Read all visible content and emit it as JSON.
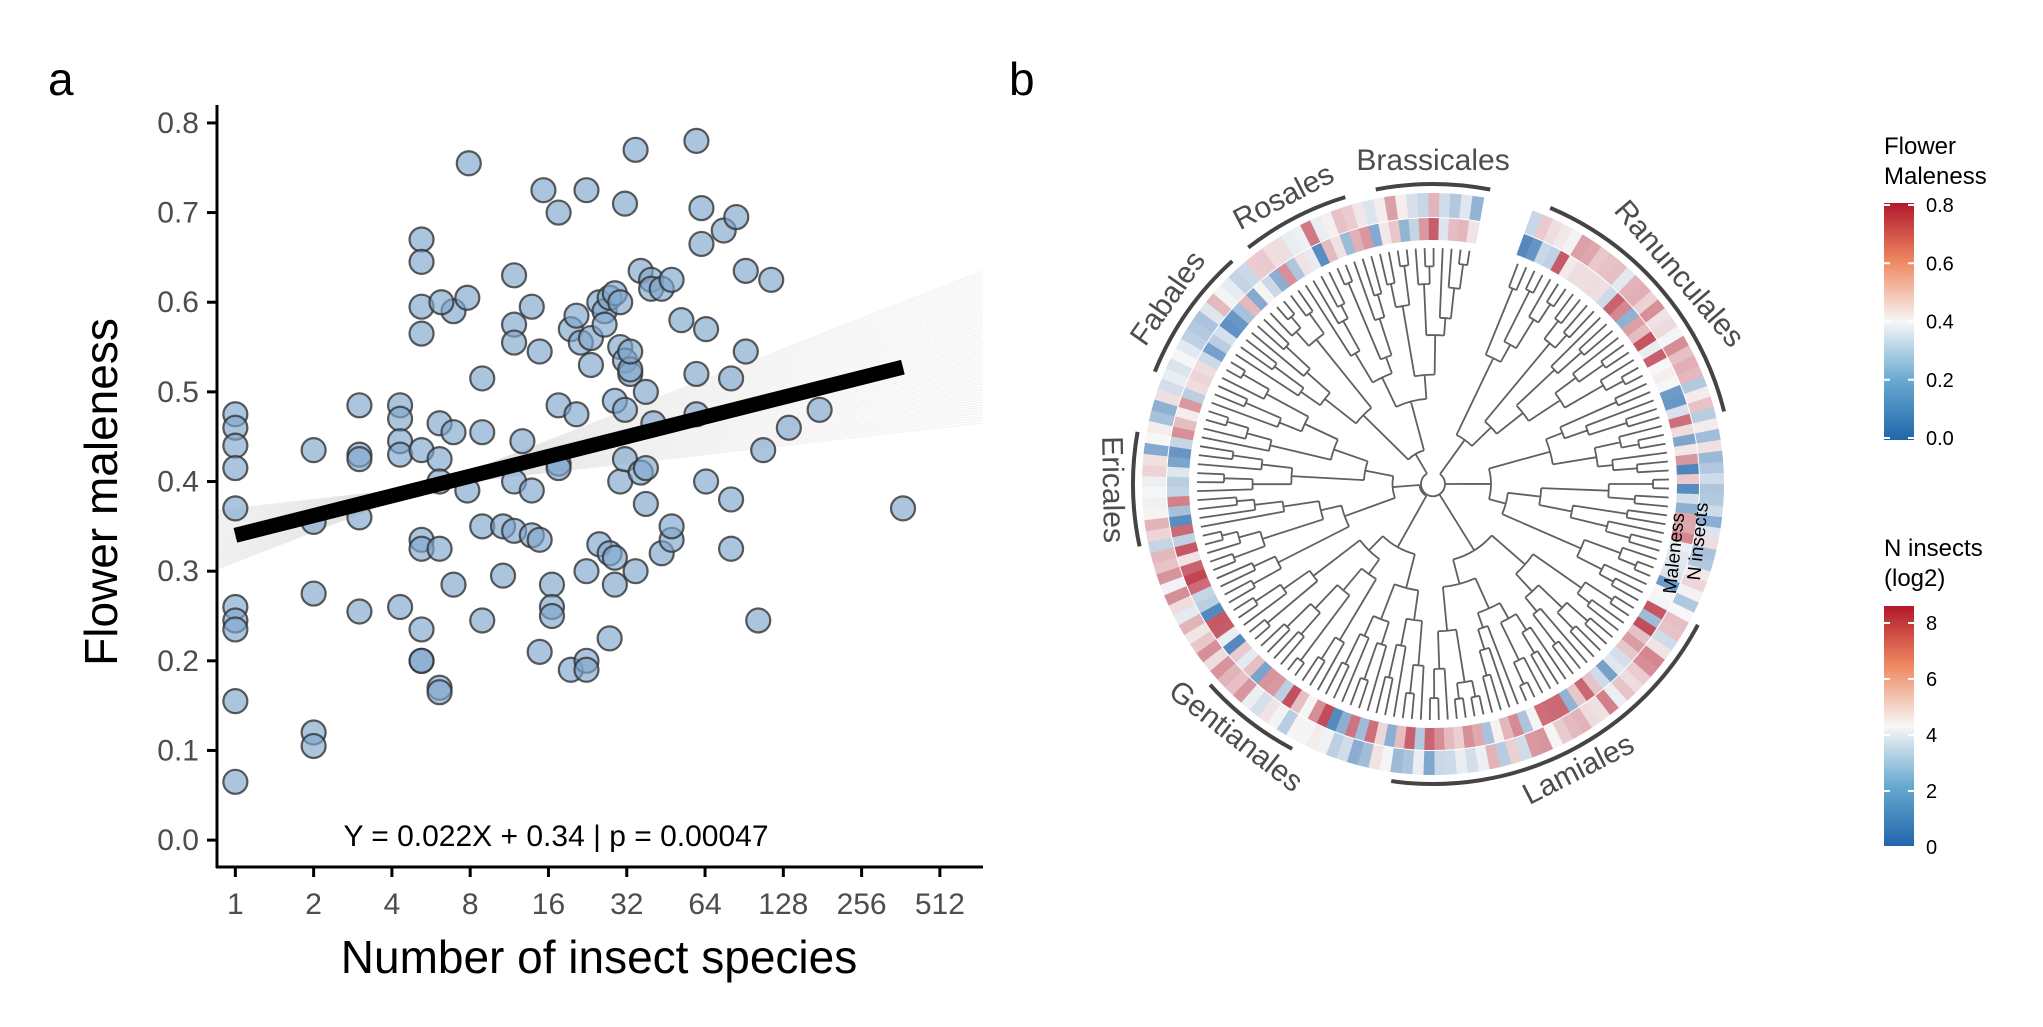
{
  "panel_a": {
    "label": "a",
    "equation": "Y = 0.022X + 0.34 | p = 0.00047",
    "chart_data": {
      "type": "scatter",
      "xlabel": "Number of insect species",
      "ylabel": "Flower maleness",
      "x_scale": "log2",
      "x_ticks": [
        1,
        2,
        4,
        8,
        16,
        32,
        64,
        128,
        256,
        512
      ],
      "x_tick_labels": [
        "1",
        "2",
        "4",
        "8",
        "16",
        "32",
        "64",
        "128",
        "256",
        "512"
      ],
      "y_ticks": [
        0.0,
        0.1,
        0.2,
        0.3,
        0.4,
        0.5,
        0.6,
        0.7,
        0.8
      ],
      "y_tick_labels": [
        "0.0",
        "0.1",
        "0.2",
        "0.3",
        "0.4",
        "0.5",
        "0.6",
        "0.7",
        "0.8"
      ],
      "xlim": [
        0.85,
        750
      ],
      "ylim": [
        -0.03,
        0.82
      ],
      "point_color": "#7fa6cd",
      "fit_line": {
        "intercept": 0.34,
        "slope_per_log2": 0.022,
        "x_range": [
          1,
          369
        ],
        "color": "#000000"
      },
      "points": [
        [
          1,
          0.475
        ],
        [
          1,
          0.46
        ],
        [
          1,
          0.44
        ],
        [
          1,
          0.415
        ],
        [
          1,
          0.37
        ],
        [
          1,
          0.26
        ],
        [
          1,
          0.245
        ],
        [
          1,
          0.235
        ],
        [
          1,
          0.155
        ],
        [
          1,
          0.065
        ],
        [
          2,
          0.435
        ],
        [
          2,
          0.355
        ],
        [
          2,
          0.275
        ],
        [
          2,
          0.12
        ],
        [
          2,
          0.105
        ],
        [
          3,
          0.485
        ],
        [
          3,
          0.43
        ],
        [
          3,
          0.425
        ],
        [
          3,
          0.36
        ],
        [
          3,
          0.255
        ],
        [
          4.3,
          0.485
        ],
        [
          4.3,
          0.47
        ],
        [
          4.3,
          0.445
        ],
        [
          4.3,
          0.43
        ],
        [
          4.3,
          0.26
        ],
        [
          5.2,
          0.67
        ],
        [
          5.2,
          0.645
        ],
        [
          5.2,
          0.595
        ],
        [
          5.2,
          0.565
        ],
        [
          5.2,
          0.435
        ],
        [
          5.2,
          0.335
        ],
        [
          5.2,
          0.325
        ],
        [
          5.2,
          0.235
        ],
        [
          5.2,
          0.2
        ],
        [
          5.2,
          0.2
        ],
        [
          6.1,
          0.465
        ],
        [
          6.1,
          0.425
        ],
        [
          6.1,
          0.4
        ],
        [
          6.1,
          0.325
        ],
        [
          6.1,
          0.17
        ],
        [
          6.1,
          0.165
        ],
        [
          6.9,
          0.59
        ],
        [
          6.9,
          0.455
        ],
        [
          6.9,
          0.285
        ],
        [
          6.2,
          0.6
        ],
        [
          7.8,
          0.39
        ],
        [
          7.9,
          0.755
        ],
        [
          7.8,
          0.605
        ],
        [
          8.9,
          0.515
        ],
        [
          8.9,
          0.455
        ],
        [
          8.9,
          0.35
        ],
        [
          8.9,
          0.245
        ],
        [
          10.7,
          0.35
        ],
        [
          10.7,
          0.295
        ],
        [
          11.8,
          0.63
        ],
        [
          11.8,
          0.575
        ],
        [
          11.8,
          0.555
        ],
        [
          11.8,
          0.4
        ],
        [
          11.8,
          0.345
        ],
        [
          12.7,
          0.445
        ],
        [
          13.8,
          0.595
        ],
        [
          13.8,
          0.39
        ],
        [
          13.8,
          0.34
        ],
        [
          14.8,
          0.545
        ],
        [
          14.8,
          0.335
        ],
        [
          14.8,
          0.21
        ],
        [
          15.3,
          0.725
        ],
        [
          16.5,
          0.285
        ],
        [
          16.5,
          0.26
        ],
        [
          16.5,
          0.25
        ],
        [
          17.5,
          0.7
        ],
        [
          17.5,
          0.485
        ],
        [
          17.5,
          0.42
        ],
        [
          17.5,
          0.415
        ],
        [
          19.5,
          0.57
        ],
        [
          19.5,
          0.19
        ],
        [
          20.5,
          0.585
        ],
        [
          20.5,
          0.475
        ],
        [
          21.3,
          0.555
        ],
        [
          22.4,
          0.725
        ],
        [
          22.4,
          0.3
        ],
        [
          22.4,
          0.2
        ],
        [
          22.4,
          0.19
        ],
        [
          23.3,
          0.53
        ],
        [
          23.3,
          0.56
        ],
        [
          25.1,
          0.6
        ],
        [
          25.1,
          0.33
        ],
        [
          26.3,
          0.59
        ],
        [
          26.3,
          0.575
        ],
        [
          27.5,
          0.605
        ],
        [
          27.5,
          0.32
        ],
        [
          27.5,
          0.225
        ],
        [
          28.8,
          0.61
        ],
        [
          28.8,
          0.49
        ],
        [
          28.8,
          0.315
        ],
        [
          28.8,
          0.285
        ],
        [
          30.2,
          0.6
        ],
        [
          30.2,
          0.55
        ],
        [
          30.2,
          0.4
        ],
        [
          31.5,
          0.71
        ],
        [
          31.5,
          0.535
        ],
        [
          31.5,
          0.425
        ],
        [
          31.5,
          0.48
        ],
        [
          33,
          0.52
        ],
        [
          33,
          0.525
        ],
        [
          33,
          0.545
        ],
        [
          34.6,
          0.77
        ],
        [
          34.6,
          0.3
        ],
        [
          36.2,
          0.635
        ],
        [
          36.2,
          0.41
        ],
        [
          37.9,
          0.5
        ],
        [
          37.9,
          0.415
        ],
        [
          37.9,
          0.375
        ],
        [
          39.7,
          0.625
        ],
        [
          39.7,
          0.615
        ],
        [
          40.5,
          0.465
        ],
        [
          43.6,
          0.32
        ],
        [
          43.6,
          0.615
        ],
        [
          47.6,
          0.625
        ],
        [
          47.6,
          0.335
        ],
        [
          47.6,
          0.35
        ],
        [
          51.9,
          0.58
        ],
        [
          59.3,
          0.78
        ],
        [
          59.3,
          0.475
        ],
        [
          59.3,
          0.52
        ],
        [
          62,
          0.705
        ],
        [
          62,
          0.665
        ],
        [
          64.6,
          0.57
        ],
        [
          64.6,
          0.4
        ],
        [
          75.5,
          0.68
        ],
        [
          80.6,
          0.515
        ],
        [
          80.6,
          0.38
        ],
        [
          80.6,
          0.325
        ],
        [
          84.4,
          0.695
        ],
        [
          91.8,
          0.635
        ],
        [
          91.8,
          0.545
        ],
        [
          102.5,
          0.245
        ],
        [
          107.1,
          0.435
        ],
        [
          115,
          0.625
        ],
        [
          134.4,
          0.46
        ],
        [
          176.5,
          0.48
        ],
        [
          369.4,
          0.37
        ]
      ]
    }
  },
  "panel_b": {
    "label": "b",
    "ring_labels": [
      "Maleness",
      "N insects"
    ],
    "clades": [
      {
        "name": "Brassicales",
        "a1": 349,
        "a2": 11
      },
      {
        "name": "Ranunculales",
        "a1": 23,
        "a2": 76
      },
      {
        "name": "Lamiales",
        "a1": 118,
        "a2": 188
      },
      {
        "name": "Gentianales",
        "a1": 208,
        "a2": 228
      },
      {
        "name": "Ericales",
        "a1": 258,
        "a2": 280
      },
      {
        "name": "Fabales",
        "a1": 292,
        "a2": 318
      },
      {
        "name": "Rosales",
        "a1": 322,
        "a2": 343
      }
    ],
    "legend_maleness": {
      "title_lines": [
        "Flower",
        "Maleness"
      ],
      "tick_labels": [
        "0.8",
        "0.6",
        "0.4",
        "0.2",
        "0.0"
      ]
    },
    "legend_insects": {
      "title_lines": [
        "N insects",
        "(log2)"
      ],
      "tick_labels": [
        "8",
        "6",
        "4",
        "2",
        "0"
      ]
    },
    "colors": {
      "low": "#2166ac",
      "mid": "#f7f7f7",
      "high": "#b2182b",
      "branch": "#606060",
      "clade_arc": "#444444"
    }
  }
}
